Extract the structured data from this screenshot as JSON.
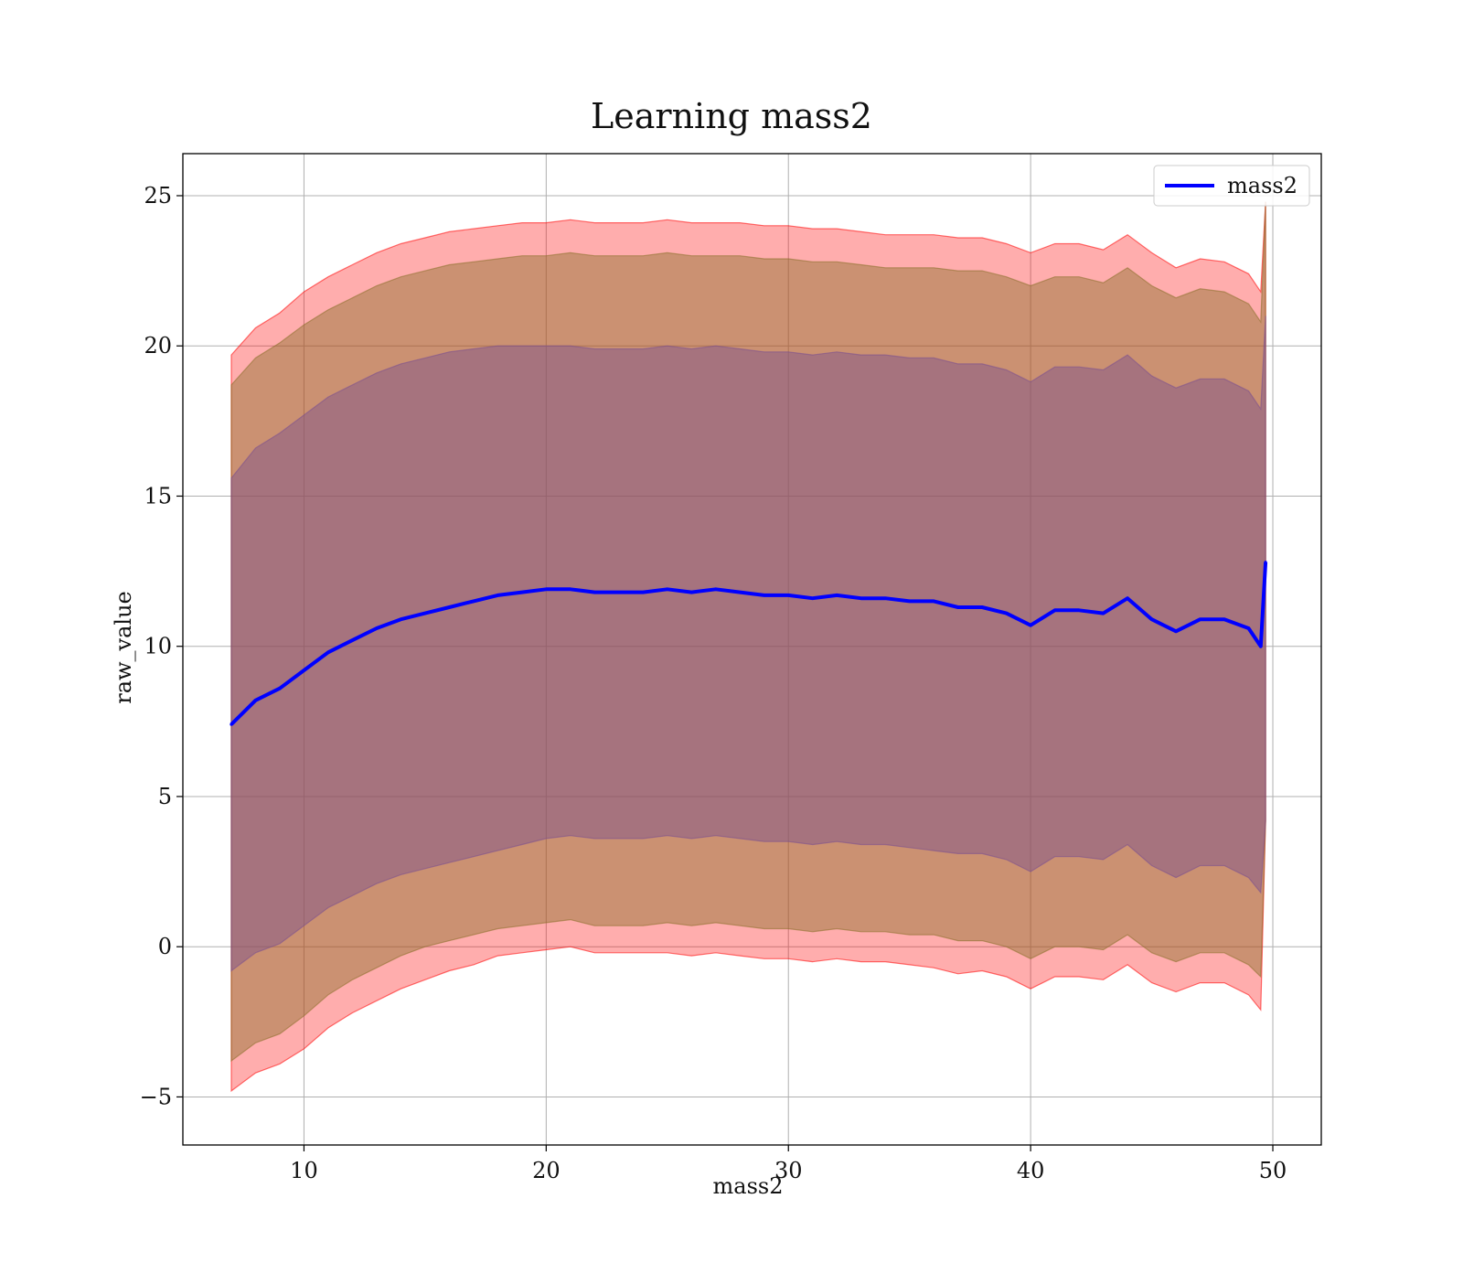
{
  "chart_data": {
    "type": "line",
    "title": "Learning mass2",
    "xlabel": "mass2",
    "ylabel": "raw_value",
    "xlim": [
      5,
      52
    ],
    "ylim": [
      -6.6,
      26.4
    ],
    "xticks": [
      10,
      20,
      30,
      40,
      50
    ],
    "yticks": [
      -5,
      0,
      5,
      10,
      15,
      20,
      25
    ],
    "xtick_labels": [
      "10",
      "20",
      "30",
      "40",
      "50"
    ],
    "ytick_labels": [
      "−5",
      "0",
      "5",
      "10",
      "15",
      "20",
      "25"
    ],
    "grid": true,
    "legend_position": "top-right",
    "colors": {
      "line": "#0000ff",
      "outer_band": "#ff0000",
      "middle_band": "#8b6f2a",
      "inner_band": "#7a4f8f",
      "grid": "#b0b0b0",
      "axes": "#000000"
    },
    "series": [
      {
        "name": "mass2",
        "x": [
          7.0,
          8.0,
          9.0,
          10.0,
          11.0,
          12.0,
          13.0,
          14.0,
          15.0,
          16.0,
          17.0,
          18.0,
          19.0,
          20.0,
          21.0,
          22.0,
          23.0,
          24.0,
          25.0,
          26.0,
          27.0,
          28.0,
          29.0,
          30.0,
          31.0,
          32.0,
          33.0,
          34.0,
          35.0,
          36.0,
          37.0,
          38.0,
          39.0,
          40.0,
          41.0,
          42.0,
          43.0,
          44.0,
          45.0,
          46.0,
          47.0,
          48.0,
          49.0,
          49.5,
          49.7
        ],
        "values": [
          7.4,
          8.2,
          8.6,
          9.2,
          9.8,
          10.2,
          10.6,
          10.9,
          11.1,
          11.3,
          11.5,
          11.7,
          11.8,
          11.9,
          11.9,
          11.8,
          11.8,
          11.8,
          11.9,
          11.8,
          11.9,
          11.8,
          11.7,
          11.7,
          11.6,
          11.7,
          11.6,
          11.6,
          11.5,
          11.5,
          11.3,
          11.3,
          11.1,
          10.7,
          11.2,
          11.2,
          11.1,
          11.6,
          10.9,
          10.5,
          10.9,
          10.9,
          10.6,
          10.0,
          12.8
        ]
      }
    ],
    "bands": [
      {
        "label": "outer",
        "upper": [
          19.7,
          20.6,
          21.1,
          21.8,
          22.3,
          22.7,
          23.1,
          23.4,
          23.6,
          23.8,
          23.9,
          24.0,
          24.1,
          24.1,
          24.2,
          24.1,
          24.1,
          24.1,
          24.2,
          24.1,
          24.1,
          24.1,
          24.0,
          24.0,
          23.9,
          23.9,
          23.8,
          23.7,
          23.7,
          23.7,
          23.6,
          23.6,
          23.4,
          23.1,
          23.4,
          23.4,
          23.2,
          23.7,
          23.1,
          22.6,
          22.9,
          22.8,
          22.4,
          21.8,
          24.8
        ],
        "lower": [
          -4.8,
          -4.2,
          -3.9,
          -3.4,
          -2.7,
          -2.2,
          -1.8,
          -1.4,
          -1.1,
          -0.8,
          -0.6,
          -0.3,
          -0.2,
          -0.1,
          0.0,
          -0.2,
          -0.2,
          -0.2,
          -0.2,
          -0.3,
          -0.2,
          -0.3,
          -0.4,
          -0.4,
          -0.5,
          -0.4,
          -0.5,
          -0.5,
          -0.6,
          -0.7,
          -0.9,
          -0.8,
          -1.0,
          -1.4,
          -1.0,
          -1.0,
          -1.1,
          -0.6,
          -1.2,
          -1.5,
          -1.2,
          -1.2,
          -1.6,
          -2.1,
          4.2
        ]
      },
      {
        "label": "middle",
        "upper": [
          18.7,
          19.6,
          20.1,
          20.7,
          21.2,
          21.6,
          22.0,
          22.3,
          22.5,
          22.7,
          22.8,
          22.9,
          23.0,
          23.0,
          23.1,
          23.0,
          23.0,
          23.0,
          23.1,
          23.0,
          23.0,
          23.0,
          22.9,
          22.9,
          22.8,
          22.8,
          22.7,
          22.6,
          22.6,
          22.6,
          22.5,
          22.5,
          22.3,
          22.0,
          22.3,
          22.3,
          22.1,
          22.6,
          22.0,
          21.6,
          21.9,
          21.8,
          21.4,
          20.8,
          24.8
        ],
        "lower": [
          -3.8,
          -3.2,
          -2.9,
          -2.3,
          -1.6,
          -1.1,
          -0.7,
          -0.3,
          0.0,
          0.2,
          0.4,
          0.6,
          0.7,
          0.8,
          0.9,
          0.7,
          0.7,
          0.7,
          0.8,
          0.7,
          0.8,
          0.7,
          0.6,
          0.6,
          0.5,
          0.6,
          0.5,
          0.5,
          0.4,
          0.4,
          0.2,
          0.2,
          0.0,
          -0.4,
          0.0,
          0.0,
          -0.1,
          0.4,
          -0.2,
          -0.5,
          -0.2,
          -0.2,
          -0.6,
          -1.0,
          4.2
        ]
      },
      {
        "label": "inner",
        "upper": [
          15.6,
          16.6,
          17.1,
          17.7,
          18.3,
          18.7,
          19.1,
          19.4,
          19.6,
          19.8,
          19.9,
          20.0,
          20.0,
          20.0,
          20.0,
          19.9,
          19.9,
          19.9,
          20.0,
          19.9,
          20.0,
          19.9,
          19.8,
          19.8,
          19.7,
          19.8,
          19.7,
          19.7,
          19.6,
          19.6,
          19.4,
          19.4,
          19.2,
          18.8,
          19.3,
          19.3,
          19.2,
          19.7,
          19.0,
          18.6,
          18.9,
          18.9,
          18.5,
          17.9,
          21.0
        ],
        "lower": [
          -0.8,
          -0.2,
          0.1,
          0.7,
          1.3,
          1.7,
          2.1,
          2.4,
          2.6,
          2.8,
          3.0,
          3.2,
          3.4,
          3.6,
          3.7,
          3.6,
          3.6,
          3.6,
          3.7,
          3.6,
          3.7,
          3.6,
          3.5,
          3.5,
          3.4,
          3.5,
          3.4,
          3.4,
          3.3,
          3.2,
          3.1,
          3.1,
          2.9,
          2.5,
          3.0,
          3.0,
          2.9,
          3.4,
          2.7,
          2.3,
          2.7,
          2.7,
          2.3,
          1.8,
          4.2
        ]
      }
    ]
  }
}
